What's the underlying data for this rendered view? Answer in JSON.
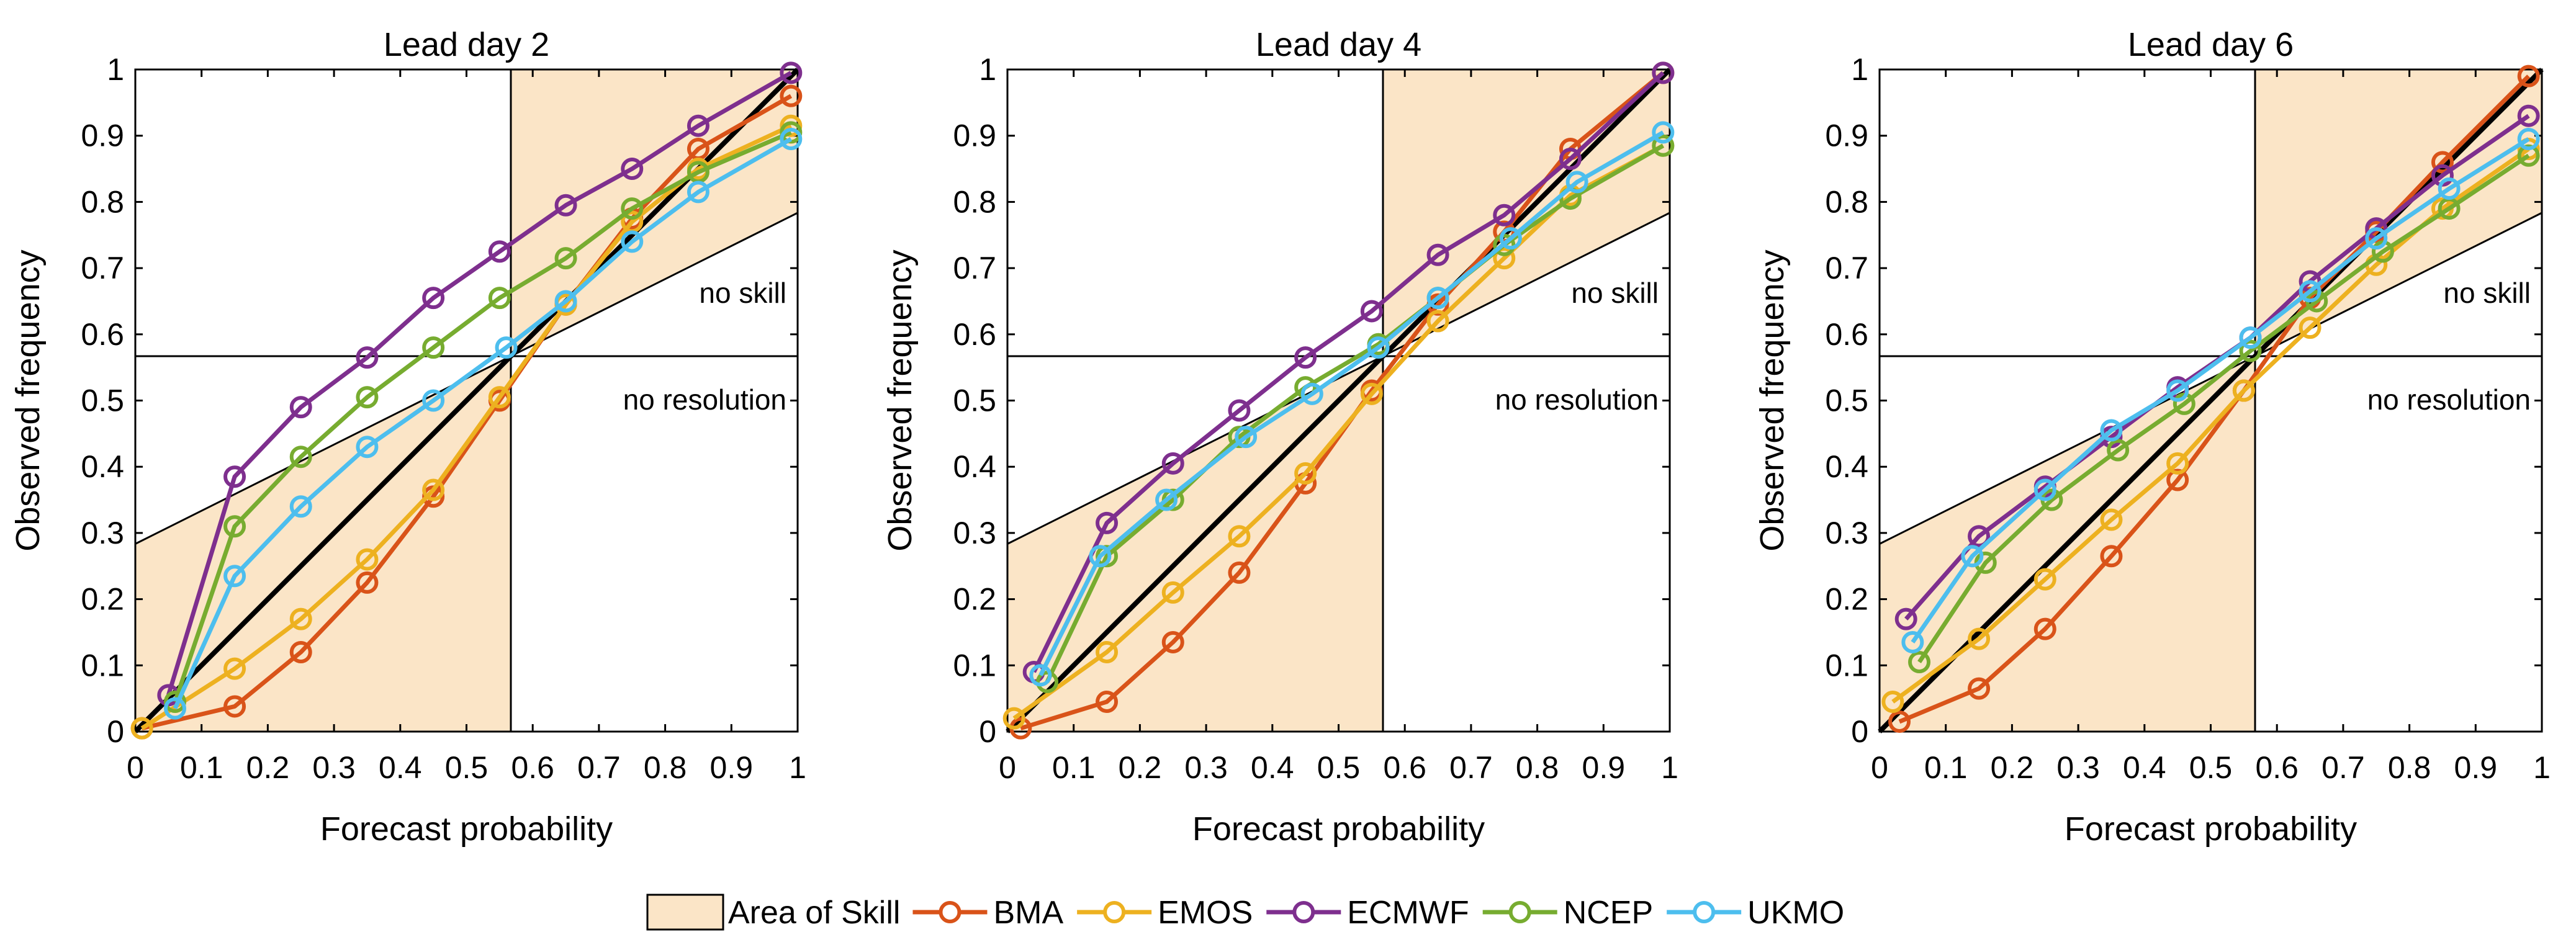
{
  "figure": {
    "legend": {
      "area_label": "Area of Skill",
      "area_color": "#FBE5C7"
    }
  },
  "chart_data": [
    {
      "type": "line",
      "title": "Lead day 2",
      "xlabel": "Forecast probability",
      "ylabel": "Observed frequency",
      "xlim": [
        0,
        1
      ],
      "ylim": [
        0,
        1
      ],
      "xticks": [
        "0",
        "0.1",
        "0.2",
        "0.3",
        "0.4",
        "0.5",
        "0.6",
        "0.7",
        "0.8",
        "0.9",
        "1"
      ],
      "yticks": [
        "0",
        "0.1",
        "0.2",
        "0.3",
        "0.4",
        "0.5",
        "0.6",
        "0.7",
        "0.8",
        "0.9",
        "1"
      ],
      "climatology": 0.567,
      "annotations": {
        "no_skill": "no skill",
        "no_resolution": "no resolution"
      },
      "series": [
        {
          "name": "BMA",
          "color": "#D95319",
          "x": [
            0.01,
            0.15,
            0.25,
            0.35,
            0.45,
            0.55,
            0.65,
            0.75,
            0.85,
            0.99
          ],
          "y": [
            0.005,
            0.038,
            0.12,
            0.225,
            0.355,
            0.5,
            0.645,
            0.775,
            0.88,
            0.96
          ]
        },
        {
          "name": "EMOS",
          "color": "#EDB120",
          "x": [
            0.01,
            0.15,
            0.25,
            0.35,
            0.45,
            0.55,
            0.65,
            0.75,
            0.85,
            0.99
          ],
          "y": [
            0.005,
            0.095,
            0.17,
            0.26,
            0.365,
            0.505,
            0.645,
            0.77,
            0.85,
            0.915
          ]
        },
        {
          "name": "ECMWF",
          "color": "#7E2F8E",
          "x": [
            0.05,
            0.15,
            0.25,
            0.35,
            0.45,
            0.55,
            0.65,
            0.75,
            0.85,
            0.99
          ],
          "y": [
            0.055,
            0.385,
            0.49,
            0.565,
            0.655,
            0.725,
            0.795,
            0.85,
            0.915,
            0.995
          ]
        },
        {
          "name": "NCEP",
          "color": "#77AC30",
          "x": [
            0.06,
            0.15,
            0.25,
            0.35,
            0.45,
            0.55,
            0.65,
            0.75,
            0.85,
            0.99
          ],
          "y": [
            0.045,
            0.31,
            0.415,
            0.505,
            0.58,
            0.655,
            0.715,
            0.79,
            0.845,
            0.905
          ]
        },
        {
          "name": "UKMO",
          "color": "#4DBEEE",
          "x": [
            0.06,
            0.15,
            0.25,
            0.35,
            0.45,
            0.56,
            0.65,
            0.75,
            0.85,
            0.99
          ],
          "y": [
            0.035,
            0.235,
            0.34,
            0.43,
            0.5,
            0.58,
            0.65,
            0.74,
            0.815,
            0.895
          ]
        }
      ]
    },
    {
      "type": "line",
      "title": "Lead day 4",
      "xlabel": "Forecast probability",
      "ylabel": "Observed frequency",
      "xlim": [
        0,
        1
      ],
      "ylim": [
        0,
        1
      ],
      "xticks": [
        "0",
        "0.1",
        "0.2",
        "0.3",
        "0.4",
        "0.5",
        "0.6",
        "0.7",
        "0.8",
        "0.9",
        "1"
      ],
      "yticks": [
        "0",
        "0.1",
        "0.2",
        "0.3",
        "0.4",
        "0.5",
        "0.6",
        "0.7",
        "0.8",
        "0.9",
        "1"
      ],
      "climatology": 0.567,
      "annotations": {
        "no_skill": "no skill",
        "no_resolution": "no resolution"
      },
      "series": [
        {
          "name": "BMA",
          "color": "#D95319",
          "x": [
            0.02,
            0.15,
            0.25,
            0.35,
            0.45,
            0.55,
            0.65,
            0.75,
            0.85,
            0.99
          ],
          "y": [
            0.005,
            0.045,
            0.135,
            0.24,
            0.375,
            0.515,
            0.645,
            0.755,
            0.88,
            0.995
          ]
        },
        {
          "name": "EMOS",
          "color": "#EDB120",
          "x": [
            0.01,
            0.15,
            0.25,
            0.35,
            0.45,
            0.55,
            0.65,
            0.75,
            0.85,
            0.99
          ],
          "y": [
            0.02,
            0.12,
            0.21,
            0.295,
            0.39,
            0.51,
            0.62,
            0.715,
            0.81,
            0.885
          ]
        },
        {
          "name": "ECMWF",
          "color": "#7E2F8E",
          "x": [
            0.04,
            0.15,
            0.25,
            0.35,
            0.45,
            0.55,
            0.65,
            0.75,
            0.85,
            0.99
          ],
          "y": [
            0.09,
            0.315,
            0.405,
            0.485,
            0.565,
            0.635,
            0.72,
            0.78,
            0.865,
            0.995
          ]
        },
        {
          "name": "NCEP",
          "color": "#77AC30",
          "x": [
            0.06,
            0.15,
            0.25,
            0.35,
            0.45,
            0.56,
            0.65,
            0.75,
            0.85,
            0.99
          ],
          "y": [
            0.075,
            0.265,
            0.35,
            0.445,
            0.52,
            0.585,
            0.655,
            0.735,
            0.805,
            0.885
          ]
        },
        {
          "name": "UKMO",
          "color": "#4DBEEE",
          "x": [
            0.05,
            0.14,
            0.24,
            0.36,
            0.46,
            0.56,
            0.65,
            0.76,
            0.86,
            0.99
          ],
          "y": [
            0.085,
            0.265,
            0.35,
            0.445,
            0.51,
            0.58,
            0.655,
            0.745,
            0.83,
            0.905
          ]
        }
      ]
    },
    {
      "type": "line",
      "title": "Lead day 6",
      "xlabel": "Forecast probability",
      "ylabel": "Observed frequency",
      "xlim": [
        0,
        1
      ],
      "ylim": [
        0,
        1
      ],
      "xticks": [
        "0",
        "0.1",
        "0.2",
        "0.3",
        "0.4",
        "0.5",
        "0.6",
        "0.7",
        "0.8",
        "0.9",
        "1"
      ],
      "yticks": [
        "0",
        "0.1",
        "0.2",
        "0.3",
        "0.4",
        "0.5",
        "0.6",
        "0.7",
        "0.8",
        "0.9",
        "1"
      ],
      "climatology": 0.567,
      "annotations": {
        "no_skill": "no skill",
        "no_resolution": "no resolution"
      },
      "series": [
        {
          "name": "BMA",
          "color": "#D95319",
          "x": [
            0.03,
            0.15,
            0.25,
            0.35,
            0.45,
            0.55,
            0.65,
            0.75,
            0.85,
            0.98
          ],
          "y": [
            0.015,
            0.065,
            0.155,
            0.265,
            0.38,
            0.515,
            0.655,
            0.755,
            0.86,
            0.99
          ]
        },
        {
          "name": "EMOS",
          "color": "#EDB120",
          "x": [
            0.02,
            0.15,
            0.25,
            0.35,
            0.45,
            0.55,
            0.65,
            0.75,
            0.85,
            0.98
          ],
          "y": [
            0.045,
            0.14,
            0.23,
            0.32,
            0.405,
            0.515,
            0.61,
            0.705,
            0.79,
            0.88
          ]
        },
        {
          "name": "ECMWF",
          "color": "#7E2F8E",
          "x": [
            0.04,
            0.15,
            0.25,
            0.35,
            0.45,
            0.56,
            0.65,
            0.75,
            0.85,
            0.98
          ],
          "y": [
            0.17,
            0.295,
            0.37,
            0.445,
            0.52,
            0.595,
            0.68,
            0.76,
            0.84,
            0.93
          ]
        },
        {
          "name": "NCEP",
          "color": "#77AC30",
          "x": [
            0.06,
            0.16,
            0.26,
            0.36,
            0.46,
            0.56,
            0.66,
            0.76,
            0.86,
            0.98
          ],
          "y": [
            0.105,
            0.255,
            0.35,
            0.425,
            0.495,
            0.575,
            0.65,
            0.725,
            0.79,
            0.87
          ]
        },
        {
          "name": "UKMO",
          "color": "#4DBEEE",
          "x": [
            0.05,
            0.14,
            0.25,
            0.35,
            0.45,
            0.56,
            0.65,
            0.75,
            0.86,
            0.98
          ],
          "y": [
            0.135,
            0.265,
            0.365,
            0.455,
            0.515,
            0.595,
            0.665,
            0.745,
            0.82,
            0.895
          ]
        }
      ]
    }
  ]
}
